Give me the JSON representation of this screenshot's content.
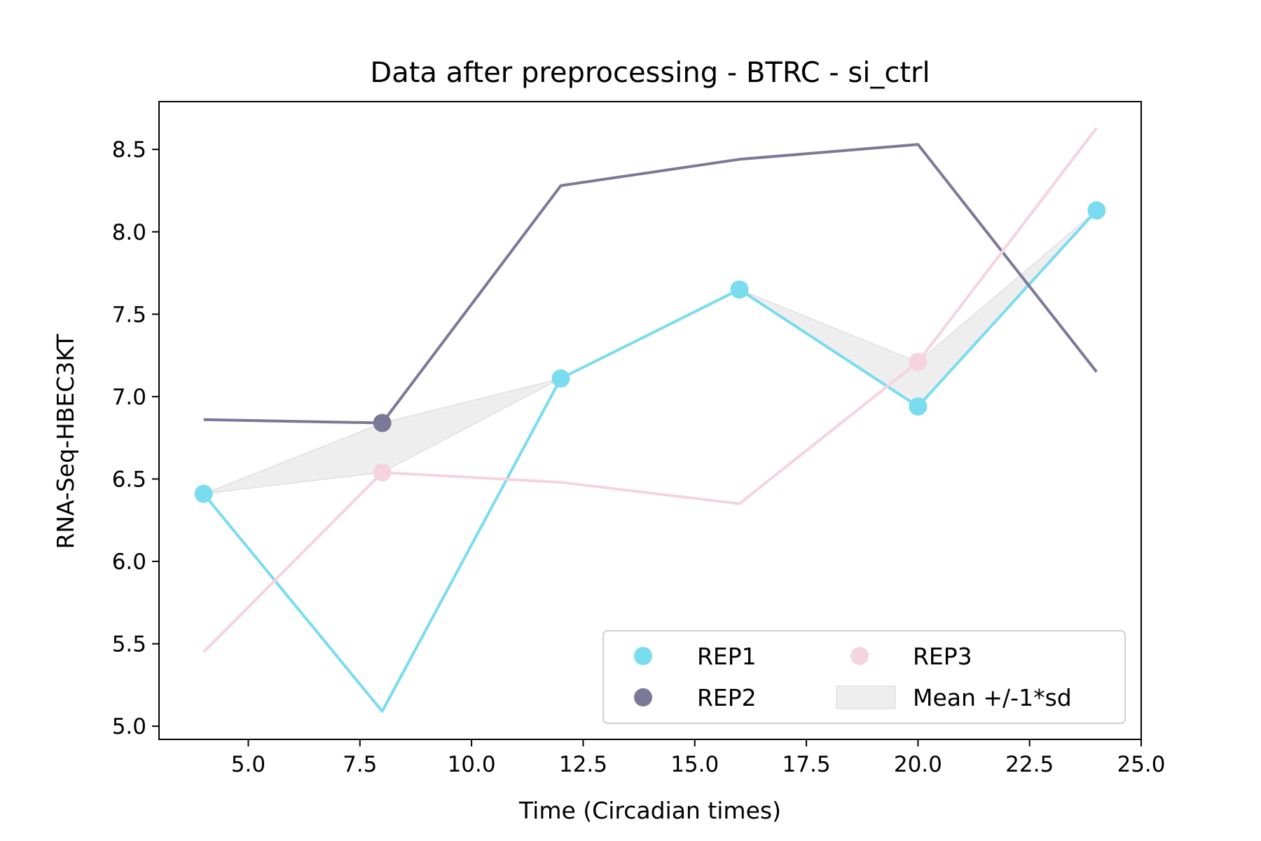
{
  "chart_data": {
    "type": "line",
    "title": "Data after preprocessing - BTRC - si_ctrl",
    "xlabel": "Time (Circadian times)",
    "ylabel": "RNA-Seq-HBEC3KT",
    "xlim": [
      3.0,
      25.0
    ],
    "ylim": [
      4.92,
      8.79
    ],
    "xticks": [
      5.0,
      7.5,
      10.0,
      12.5,
      15.0,
      17.5,
      20.0,
      22.5,
      25.0
    ],
    "xtick_labels": [
      "5.0",
      "7.5",
      "10.0",
      "12.5",
      "15.0",
      "17.5",
      "20.0",
      "22.5",
      "25.0"
    ],
    "yticks": [
      5.0,
      5.5,
      6.0,
      6.5,
      7.0,
      7.5,
      8.0,
      8.5
    ],
    "ytick_labels": [
      "5.0",
      "5.5",
      "6.0",
      "6.5",
      "7.0",
      "7.5",
      "8.0",
      "8.5"
    ],
    "grid": false,
    "legend_position": "lower-right",
    "series": [
      {
        "name": "REP1",
        "color": "#7adcef",
        "line": {
          "x": [
            4,
            8,
            12,
            16,
            20,
            24
          ],
          "y": [
            6.41,
            5.09,
            7.11,
            7.65,
            6.94,
            8.13
          ]
        },
        "points": {
          "x": [
            4,
            12,
            16,
            20,
            24
          ],
          "y": [
            6.41,
            7.11,
            7.65,
            6.94,
            8.13
          ]
        }
      },
      {
        "name": "REP2",
        "color": "#7b7898",
        "line": {
          "x": [
            4,
            8,
            12,
            16,
            20,
            24
          ],
          "y": [
            6.86,
            6.84,
            8.28,
            8.44,
            8.53,
            7.15
          ]
        },
        "points": {
          "x": [
            8
          ],
          "y": [
            6.84
          ]
        }
      },
      {
        "name": "REP3",
        "color": "#f5d3df",
        "line": {
          "x": [
            4,
            8,
            12,
            16,
            20,
            24
          ],
          "y": [
            5.45,
            6.54,
            6.48,
            6.35,
            7.21,
            8.63
          ]
        },
        "points": {
          "x": [
            8,
            20
          ],
          "y": [
            6.54,
            7.21
          ]
        }
      }
    ],
    "band": {
      "name": "Mean +/-1*sd",
      "color": "#e8e8e8",
      "x": [
        4,
        8,
        12,
        16,
        20,
        24
      ],
      "lower": [
        6.41,
        6.54,
        7.11,
        7.65,
        6.94,
        8.13
      ],
      "upper": [
        6.41,
        6.84,
        7.11,
        7.65,
        7.21,
        8.13
      ]
    },
    "legend": [
      {
        "label": "REP1",
        "kind": "marker",
        "color": "#7adcef"
      },
      {
        "label": "REP2",
        "kind": "marker",
        "color": "#7b7898"
      },
      {
        "label": "REP3",
        "kind": "marker",
        "color": "#f5d3df"
      },
      {
        "label": "Mean +/-1*sd",
        "kind": "patch",
        "color": "#e8e8e8"
      }
    ]
  }
}
